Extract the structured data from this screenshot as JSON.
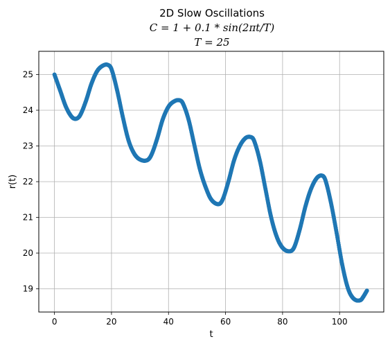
{
  "chart_data": {
    "type": "scatter",
    "title_lines": [
      "2D Slow Oscillations",
      "C = 1 + 0.1 * sin(2πt/T)",
      "T = 25"
    ],
    "xlabel": "t",
    "ylabel": "r(t)",
    "xlim": [
      -5.5,
      115.5
    ],
    "ylim": [
      18.35,
      25.65
    ],
    "xticks": [
      0,
      20,
      40,
      60,
      80,
      100
    ],
    "yticks": [
      19,
      20,
      21,
      22,
      23,
      24,
      25
    ],
    "grid": true,
    "marker_color": "#1f77b4",
    "series": [
      {
        "x": [
          0,
          2,
          4,
          6,
          7.5,
          9,
          11,
          13,
          15,
          17,
          18.7,
          20,
          22,
          24,
          26,
          28,
          30,
          32.5,
          34,
          36,
          38,
          40,
          42,
          43.8,
          45,
          47,
          49,
          51,
          53,
          55,
          57.5,
          59,
          61,
          63,
          65,
          67,
          68.8,
          70,
          72,
          74,
          76,
          78,
          80,
          82.3,
          84,
          86,
          88,
          90,
          92,
          93.8,
          95,
          97,
          99,
          101,
          103,
          105,
          107.3,
          108.5,
          109.6
        ],
        "y": [
          25.0,
          24.55,
          24.1,
          23.82,
          23.76,
          23.86,
          24.25,
          24.75,
          25.1,
          25.25,
          25.27,
          25.15,
          24.55,
          23.8,
          23.15,
          22.78,
          22.62,
          22.6,
          22.75,
          23.2,
          23.75,
          24.1,
          24.25,
          24.28,
          24.2,
          23.75,
          23.05,
          22.35,
          21.85,
          21.5,
          21.37,
          21.5,
          22.0,
          22.6,
          23.0,
          23.22,
          23.25,
          23.15,
          22.6,
          21.8,
          21.0,
          20.45,
          20.15,
          20.05,
          20.15,
          20.65,
          21.3,
          21.8,
          22.1,
          22.17,
          22.05,
          21.4,
          20.55,
          19.65,
          19.0,
          18.72,
          18.68,
          18.8,
          18.95
        ]
      }
    ]
  }
}
